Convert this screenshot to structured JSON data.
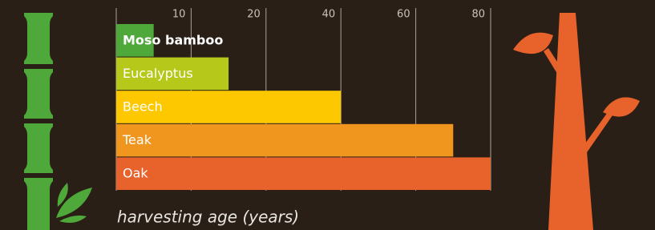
{
  "chart_data": {
    "type": "bar",
    "orientation": "horizontal",
    "categories": [
      "Moso bamboo",
      "Eucalyptus",
      "Beech",
      "Teak",
      "Oak"
    ],
    "values": [
      5,
      15,
      40,
      70,
      80
    ],
    "colors": [
      "#4ea83a",
      "#b6c91a",
      "#fdc800",
      "#f0961f",
      "#e8622c"
    ],
    "xlim": [
      0,
      80
    ],
    "xticks": [
      10,
      20,
      40,
      60,
      80
    ],
    "xlabel": "harvesting age (years)",
    "grid": true
  }
}
